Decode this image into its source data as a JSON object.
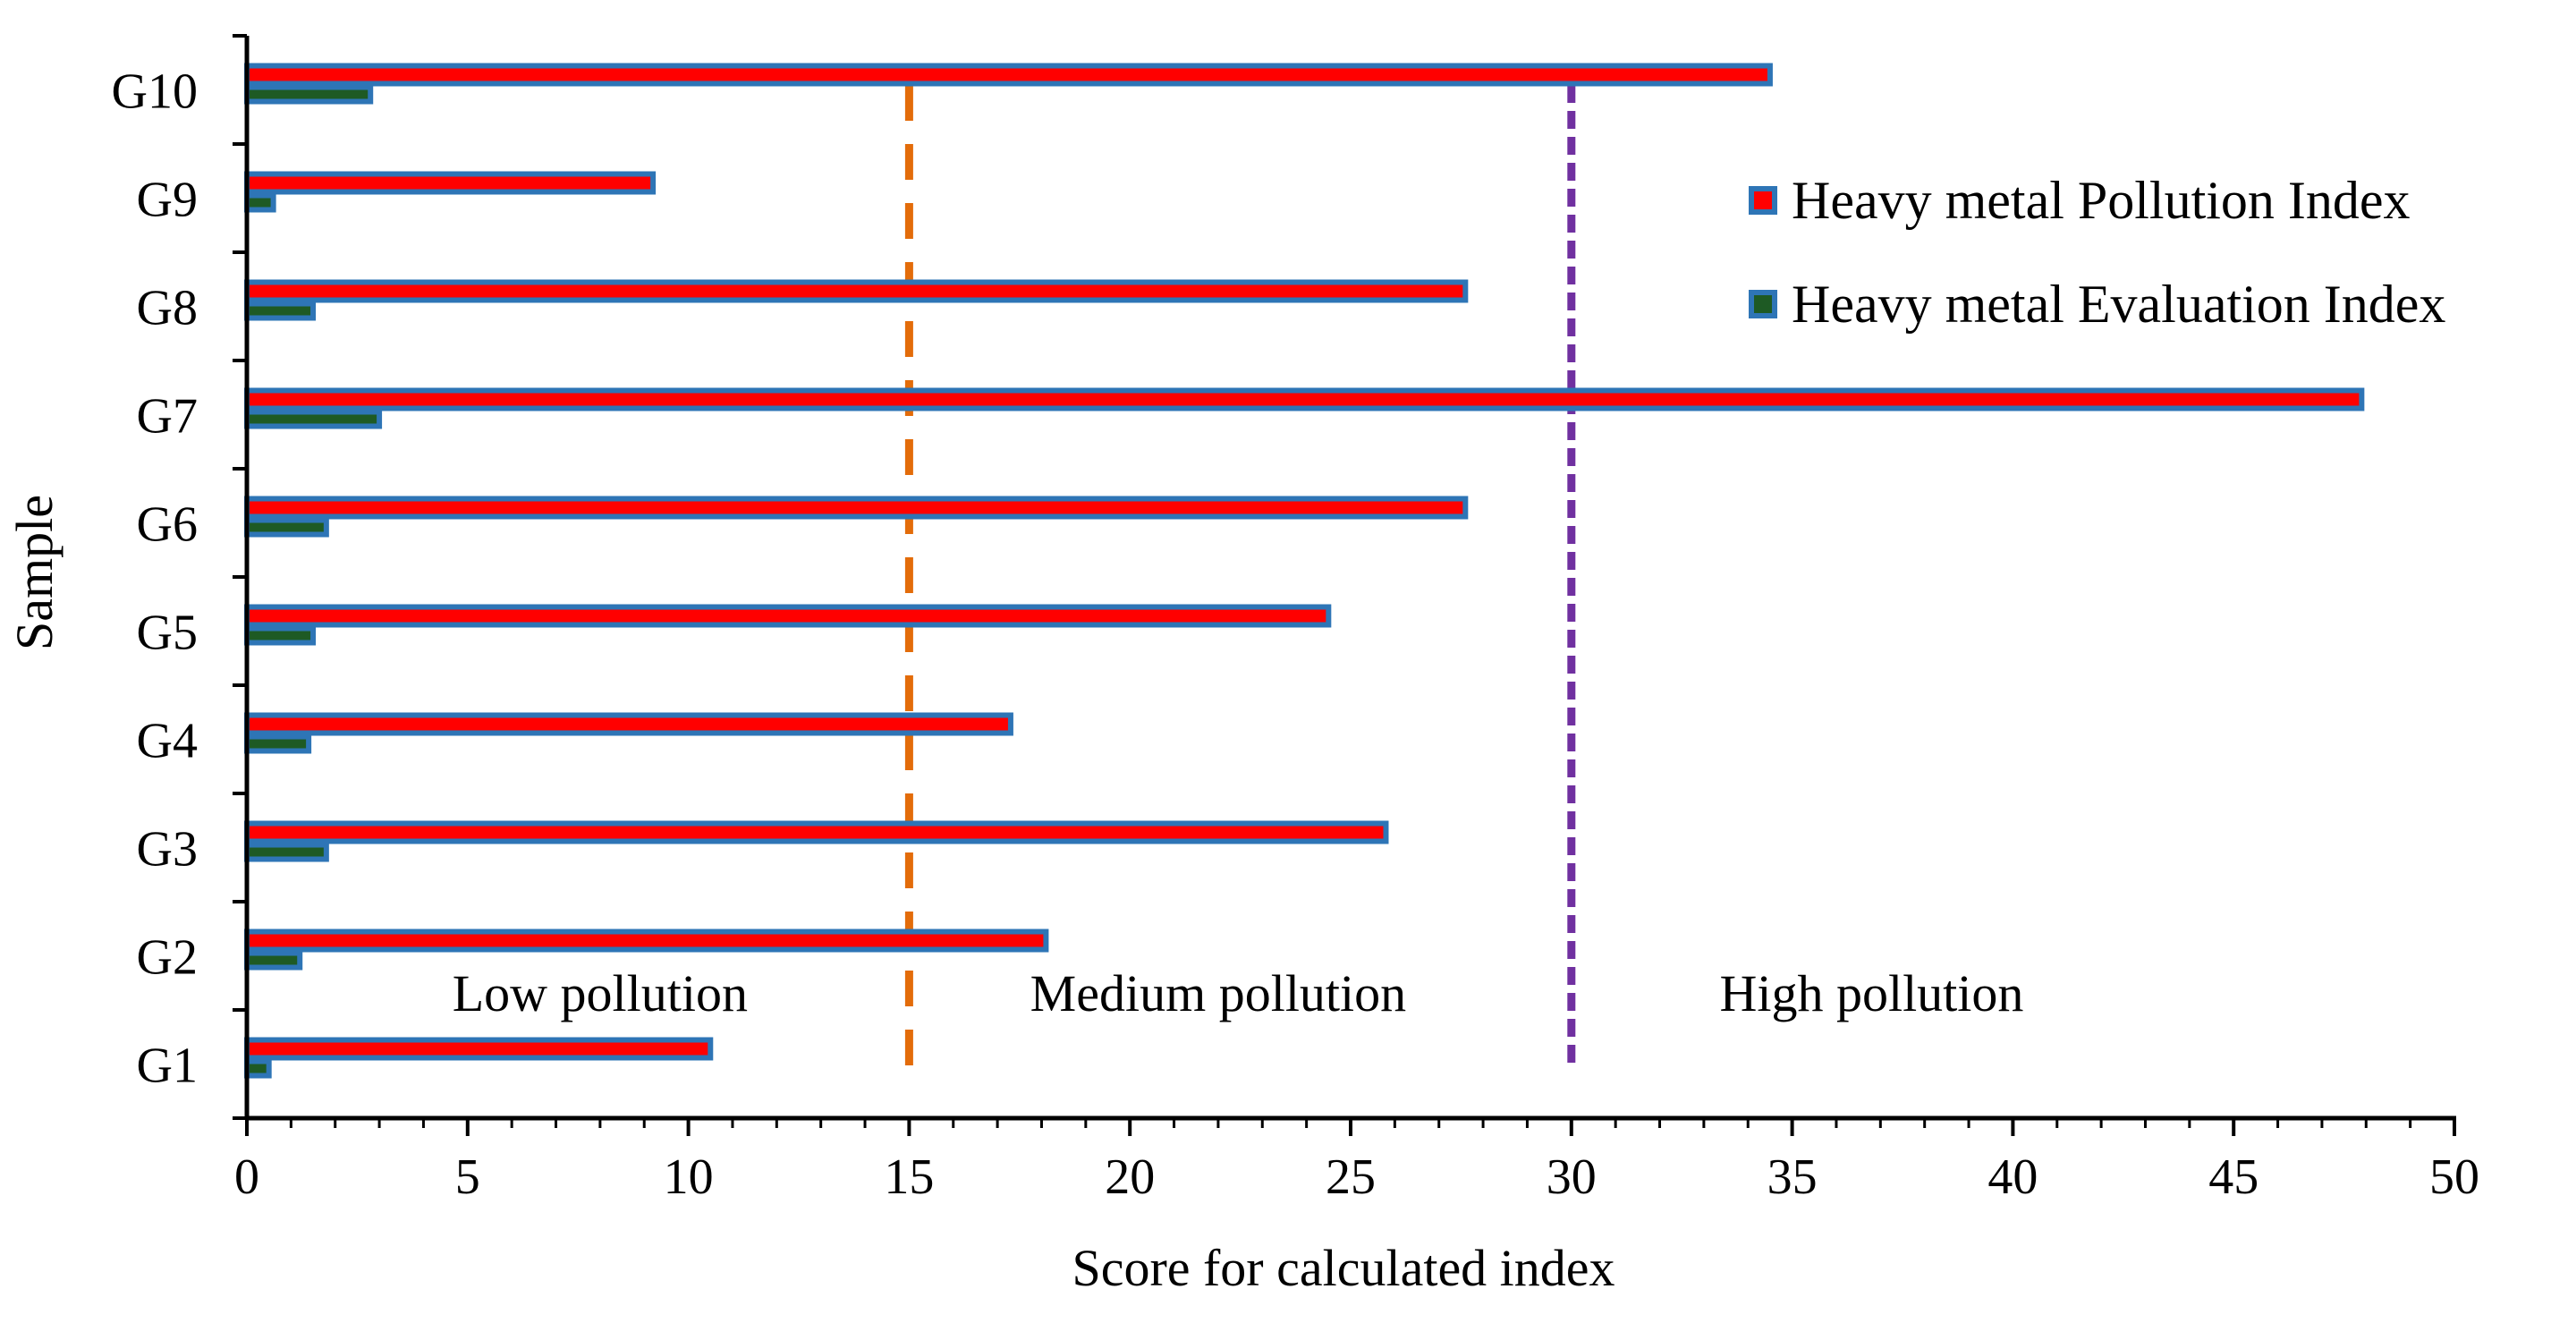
{
  "chart_data": {
    "type": "bar",
    "orientation": "horizontal",
    "categories": [
      "G1",
      "G2",
      "G3",
      "G4",
      "G5",
      "G6",
      "G7",
      "G8",
      "G9",
      "G10"
    ],
    "series": [
      {
        "name": "Heavy metal Pollution Index",
        "color": "#ff0000",
        "border_color": "#2e75b6",
        "values": [
          10.5,
          18.1,
          25.8,
          17.3,
          24.5,
          27.6,
          47.9,
          27.6,
          9.2,
          34.5
        ]
      },
      {
        "name": "Heavy metal Evaluation Index",
        "color": "#1e5a24",
        "border_color": "#2e75b6",
        "values": [
          0.5,
          1.2,
          1.8,
          1.4,
          1.5,
          1.8,
          3.0,
          1.5,
          0.6,
          2.8
        ]
      }
    ],
    "xlabel": "Score for calculated index",
    "ylabel": "Sample",
    "xlim": [
      0,
      50
    ],
    "xticks": [
      0,
      5,
      10,
      15,
      20,
      25,
      30,
      35,
      40,
      45,
      50
    ],
    "minor_tick_step": 1,
    "grid": false,
    "legend": "top-right",
    "reference_lines": [
      {
        "value": 15,
        "color": "#e36c0a",
        "style": "dashed"
      },
      {
        "value": 30,
        "color": "#7030a0",
        "style": "dotted"
      }
    ],
    "zones": [
      {
        "label": "Low pollution",
        "x": 8.0
      },
      {
        "label": "Medium pollution",
        "x": 22
      },
      {
        "label": "High pollution",
        "x": 36.8
      }
    ]
  }
}
